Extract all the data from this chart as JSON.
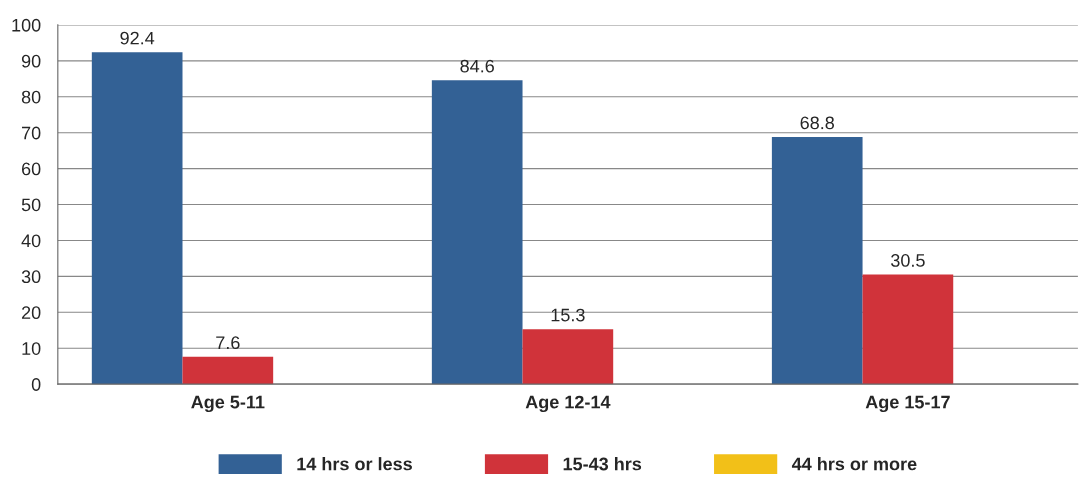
{
  "chart_data": {
    "type": "bar",
    "categories": [
      "Age 5-11",
      "Age 12-14",
      "Age 15-17"
    ],
    "series": [
      {
        "name": "14 hrs or less",
        "color": "#336195",
        "values": [
          92.4,
          84.6,
          68.8
        ]
      },
      {
        "name": "15-43 hrs",
        "color": "#d0333a",
        "values": [
          7.6,
          15.3,
          30.5
        ]
      },
      {
        "name": "44 hrs or more",
        "color": "#f2c018",
        "values": [
          null,
          null,
          null
        ]
      }
    ],
    "ylim": [
      0,
      100
    ],
    "yticks": [
      0,
      10,
      20,
      30,
      40,
      50,
      60,
      70,
      80,
      90,
      100
    ],
    "grid": "y",
    "legend": "bottom",
    "data_labels": true
  }
}
